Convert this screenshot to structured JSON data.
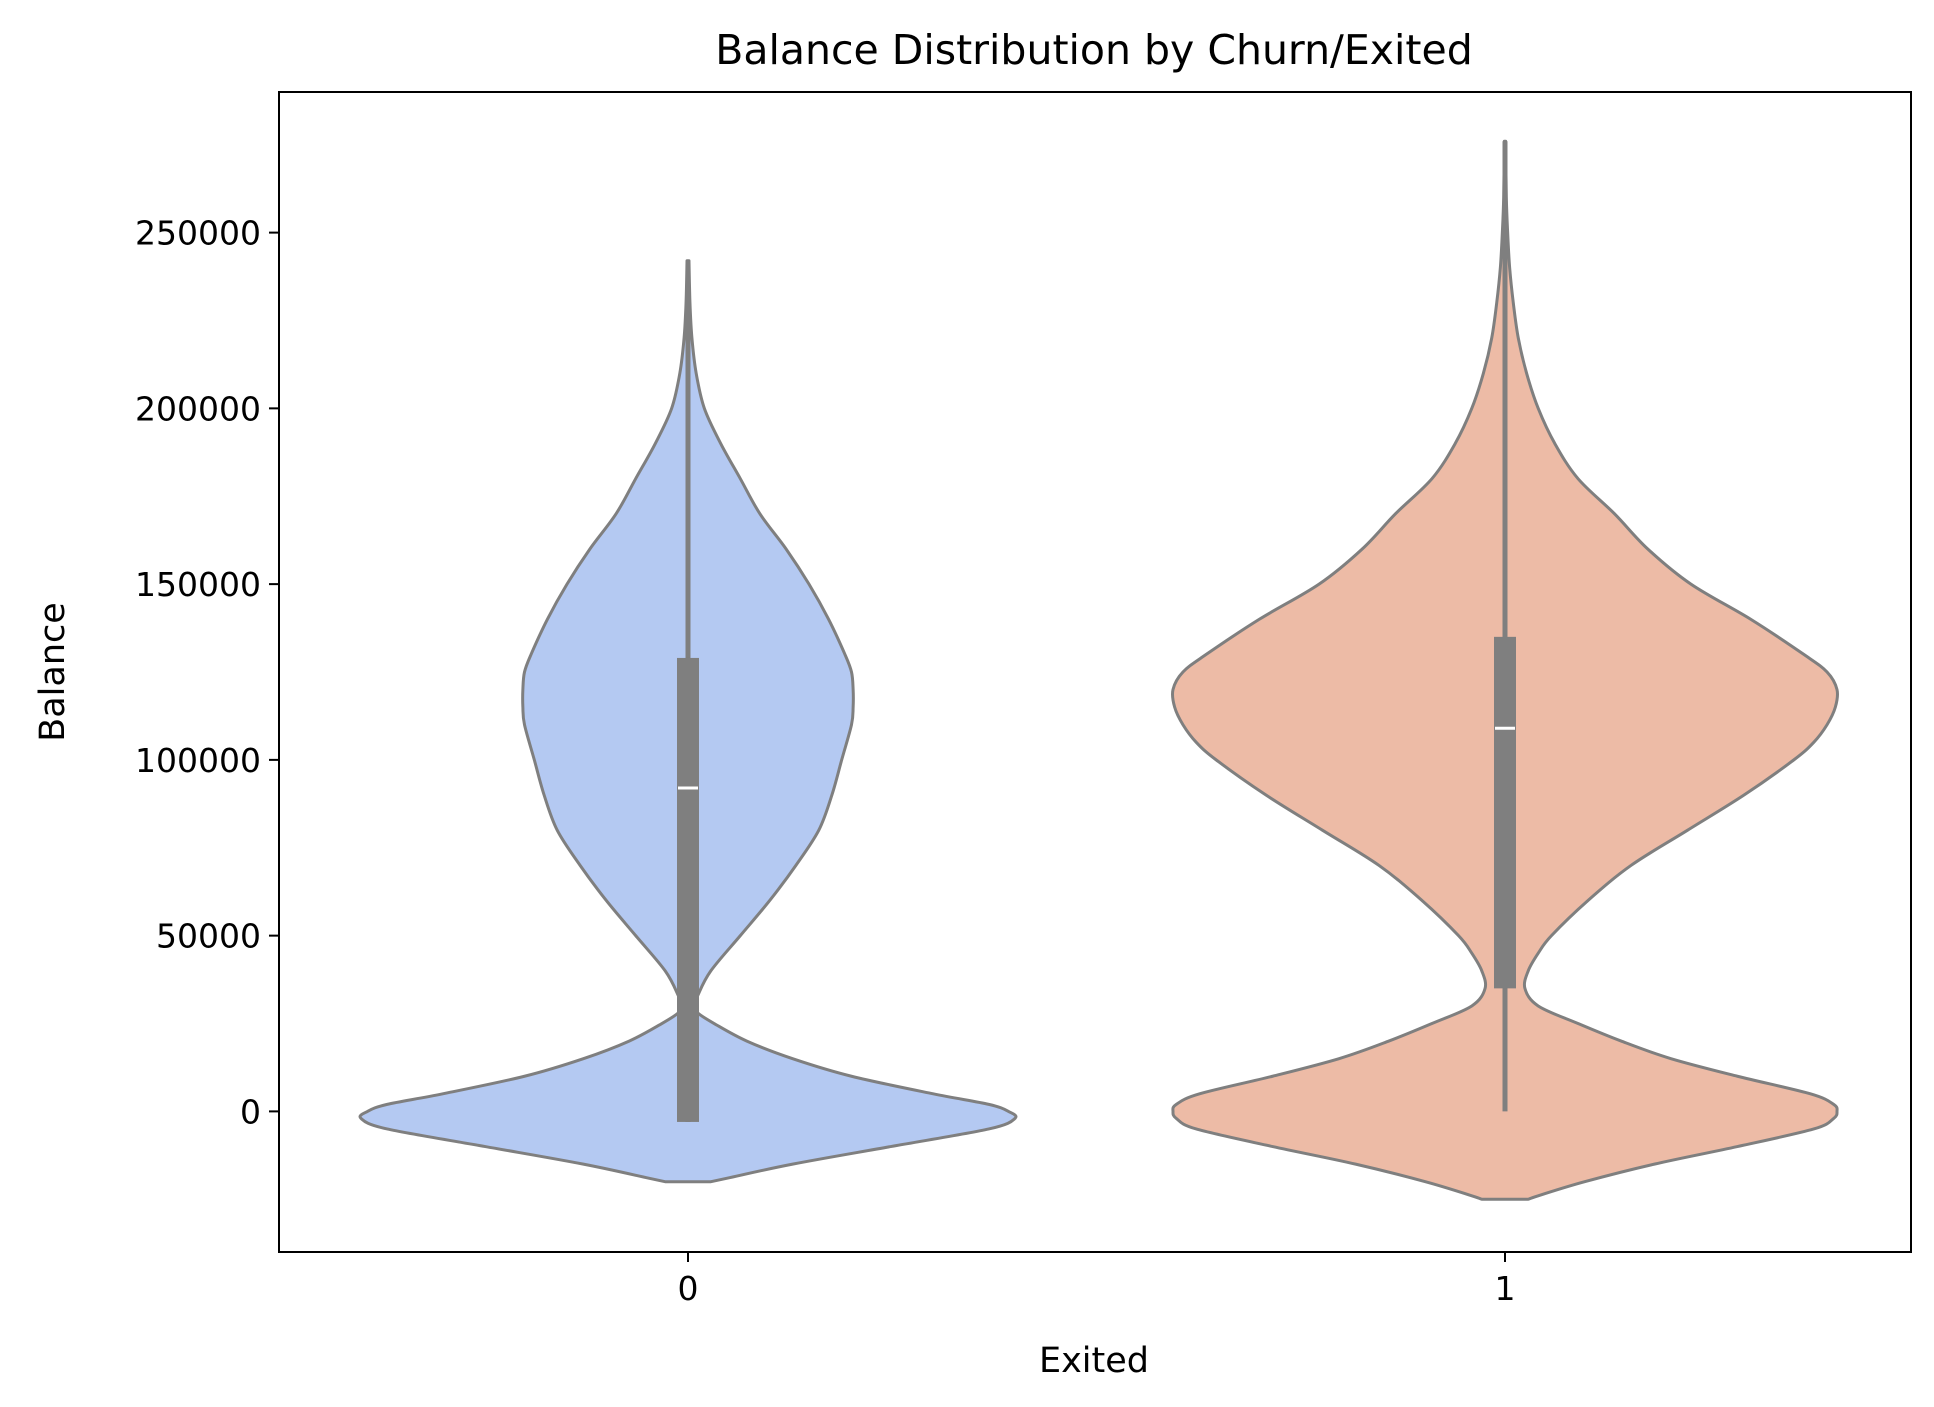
{
  "chart_data": {
    "type": "violin",
    "title": "Balance Distribution by Churn/Exited",
    "xlabel": "Exited",
    "ylabel": "Balance",
    "categories": [
      "0",
      "1"
    ],
    "ylim": [
      -40000,
      290000
    ],
    "yticks": [
      0,
      50000,
      100000,
      150000,
      200000,
      250000
    ],
    "yticklabels": [
      "0",
      "50000",
      "100000",
      "150000",
      "200000",
      "250000"
    ],
    "grid": false,
    "legend": "none",
    "colors": {
      "0": "#b4c9f2",
      "1": "#edbba6",
      "outline": "#7f7f7f",
      "box": "#7f7f7f",
      "median": "#ffffff"
    },
    "violins": [
      {
        "category": "0",
        "stats": {
          "min": -3000,
          "q1": -3000,
          "median": 92000,
          "q3": 129000,
          "whisker_low": -3000,
          "whisker_high": 222000,
          "max": 242000
        },
        "density_profile": {
          "y": [
            -20000,
            -19000,
            -15000,
            -10000,
            -5000,
            -2000,
            0,
            2000,
            5000,
            10000,
            15000,
            20000,
            25000,
            28000,
            30000,
            33000,
            40000,
            50000,
            60000,
            70000,
            80000,
            90000,
            100000,
            110000,
            115000,
            120000,
            125000,
            130000,
            140000,
            150000,
            160000,
            170000,
            180000,
            190000,
            200000,
            210000,
            220000,
            230000,
            242000
          ],
          "relative_width": [
            0.07,
            0.12,
            0.32,
            0.62,
            0.92,
            1.0,
            0.98,
            0.92,
            0.75,
            0.5,
            0.32,
            0.18,
            0.08,
            0.03,
            0.02,
            0.03,
            0.07,
            0.16,
            0.25,
            0.33,
            0.4,
            0.44,
            0.47,
            0.5,
            0.505,
            0.505,
            0.5,
            0.48,
            0.43,
            0.37,
            0.3,
            0.22,
            0.16,
            0.1,
            0.05,
            0.025,
            0.012,
            0.006,
            0.003
          ]
        }
      },
      {
        "category": "1",
        "stats": {
          "min": 0,
          "q1": 35000,
          "median": 109000,
          "q3": 135000,
          "whisker_low": 0,
          "whisker_high": 252000,
          "max": 276000
        },
        "density_profile": {
          "y": [
            -25000,
            -24000,
            -20000,
            -15000,
            -10000,
            -5000,
            -2000,
            0,
            2000,
            5000,
            10000,
            15000,
            20000,
            25000,
            30000,
            35000,
            40000,
            45000,
            50000,
            60000,
            70000,
            80000,
            90000,
            100000,
            105000,
            110000,
            115000,
            120000,
            125000,
            130000,
            140000,
            150000,
            160000,
            170000,
            180000,
            190000,
            200000,
            210000,
            220000,
            230000,
            240000,
            250000,
            260000,
            276000
          ],
          "relative_width": [
            0.07,
            0.1,
            0.24,
            0.45,
            0.7,
            0.93,
            0.99,
            1.0,
            0.99,
            0.92,
            0.7,
            0.5,
            0.35,
            0.22,
            0.1,
            0.06,
            0.07,
            0.1,
            0.14,
            0.25,
            0.38,
            0.55,
            0.72,
            0.87,
            0.93,
            0.97,
            0.995,
            1.0,
            0.97,
            0.9,
            0.74,
            0.56,
            0.43,
            0.33,
            0.22,
            0.15,
            0.1,
            0.065,
            0.04,
            0.025,
            0.014,
            0.008,
            0.004,
            0.002
          ]
        }
      }
    ]
  }
}
